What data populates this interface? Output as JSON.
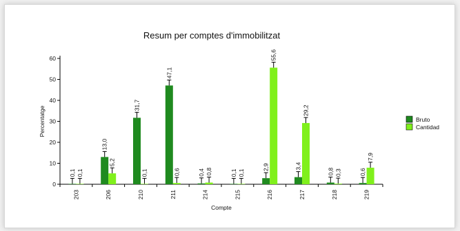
{
  "chart_data": {
    "type": "bar",
    "title": "Resum per comptes d'immobilitzat",
    "xlabel": "Compte",
    "ylabel": "Percentatge",
    "ylim": [
      0,
      60
    ],
    "yticks": [
      0,
      10,
      20,
      30,
      40,
      50,
      60
    ],
    "categories": [
      "203",
      "206",
      "210",
      "211",
      "214",
      "215",
      "216",
      "217",
      "218",
      "219"
    ],
    "series": [
      {
        "name": "Bruto",
        "color": "#1f8a1f",
        "values": [
          0.1,
          13.0,
          31.7,
          47.1,
          0.4,
          0.1,
          2.9,
          3.4,
          0.8,
          0.6
        ],
        "labels": [
          "0,1",
          "13,0",
          "31,7",
          "47,1",
          "0,4",
          "0,1",
          "2,9",
          "3,4",
          "0,8",
          "0,6"
        ]
      },
      {
        "name": "Cantidad",
        "color": "#80f01c",
        "values": [
          0.1,
          5.2,
          0.1,
          0.6,
          0.8,
          0.1,
          55.6,
          29.2,
          0.3,
          7.9
        ],
        "labels": [
          "0,1",
          "5,2",
          "0,1",
          "0,6",
          "0,8",
          "0,1",
          "55,6",
          "29,2",
          "0,3",
          "7,9"
        ]
      }
    ],
    "legend": "right",
    "grid": false
  }
}
